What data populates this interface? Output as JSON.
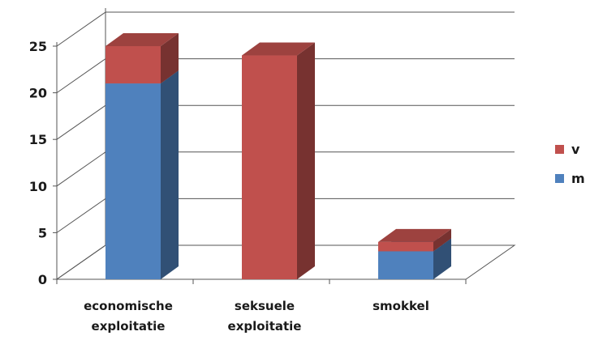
{
  "chart_data": {
    "type": "bar",
    "stacked": true,
    "three_d": true,
    "categories": [
      [
        "economische",
        "exploitatie"
      ],
      [
        "seksuele",
        "exploitatie"
      ],
      [
        "smokkel"
      ]
    ],
    "series": [
      {
        "name": "m",
        "values": [
          21,
          0,
          3
        ],
        "color": "#4f81bd"
      },
      {
        "name": "v",
        "values": [
          4,
          24,
          1
        ],
        "color": "#c0504d"
      }
    ],
    "ylim": [
      0,
      25
    ],
    "yticks": [
      0,
      5,
      10,
      15,
      20,
      25
    ],
    "grid": true,
    "legend_position": "right",
    "legend_order": [
      "v",
      "m"
    ],
    "title": "",
    "xlabel": "",
    "ylabel": ""
  }
}
